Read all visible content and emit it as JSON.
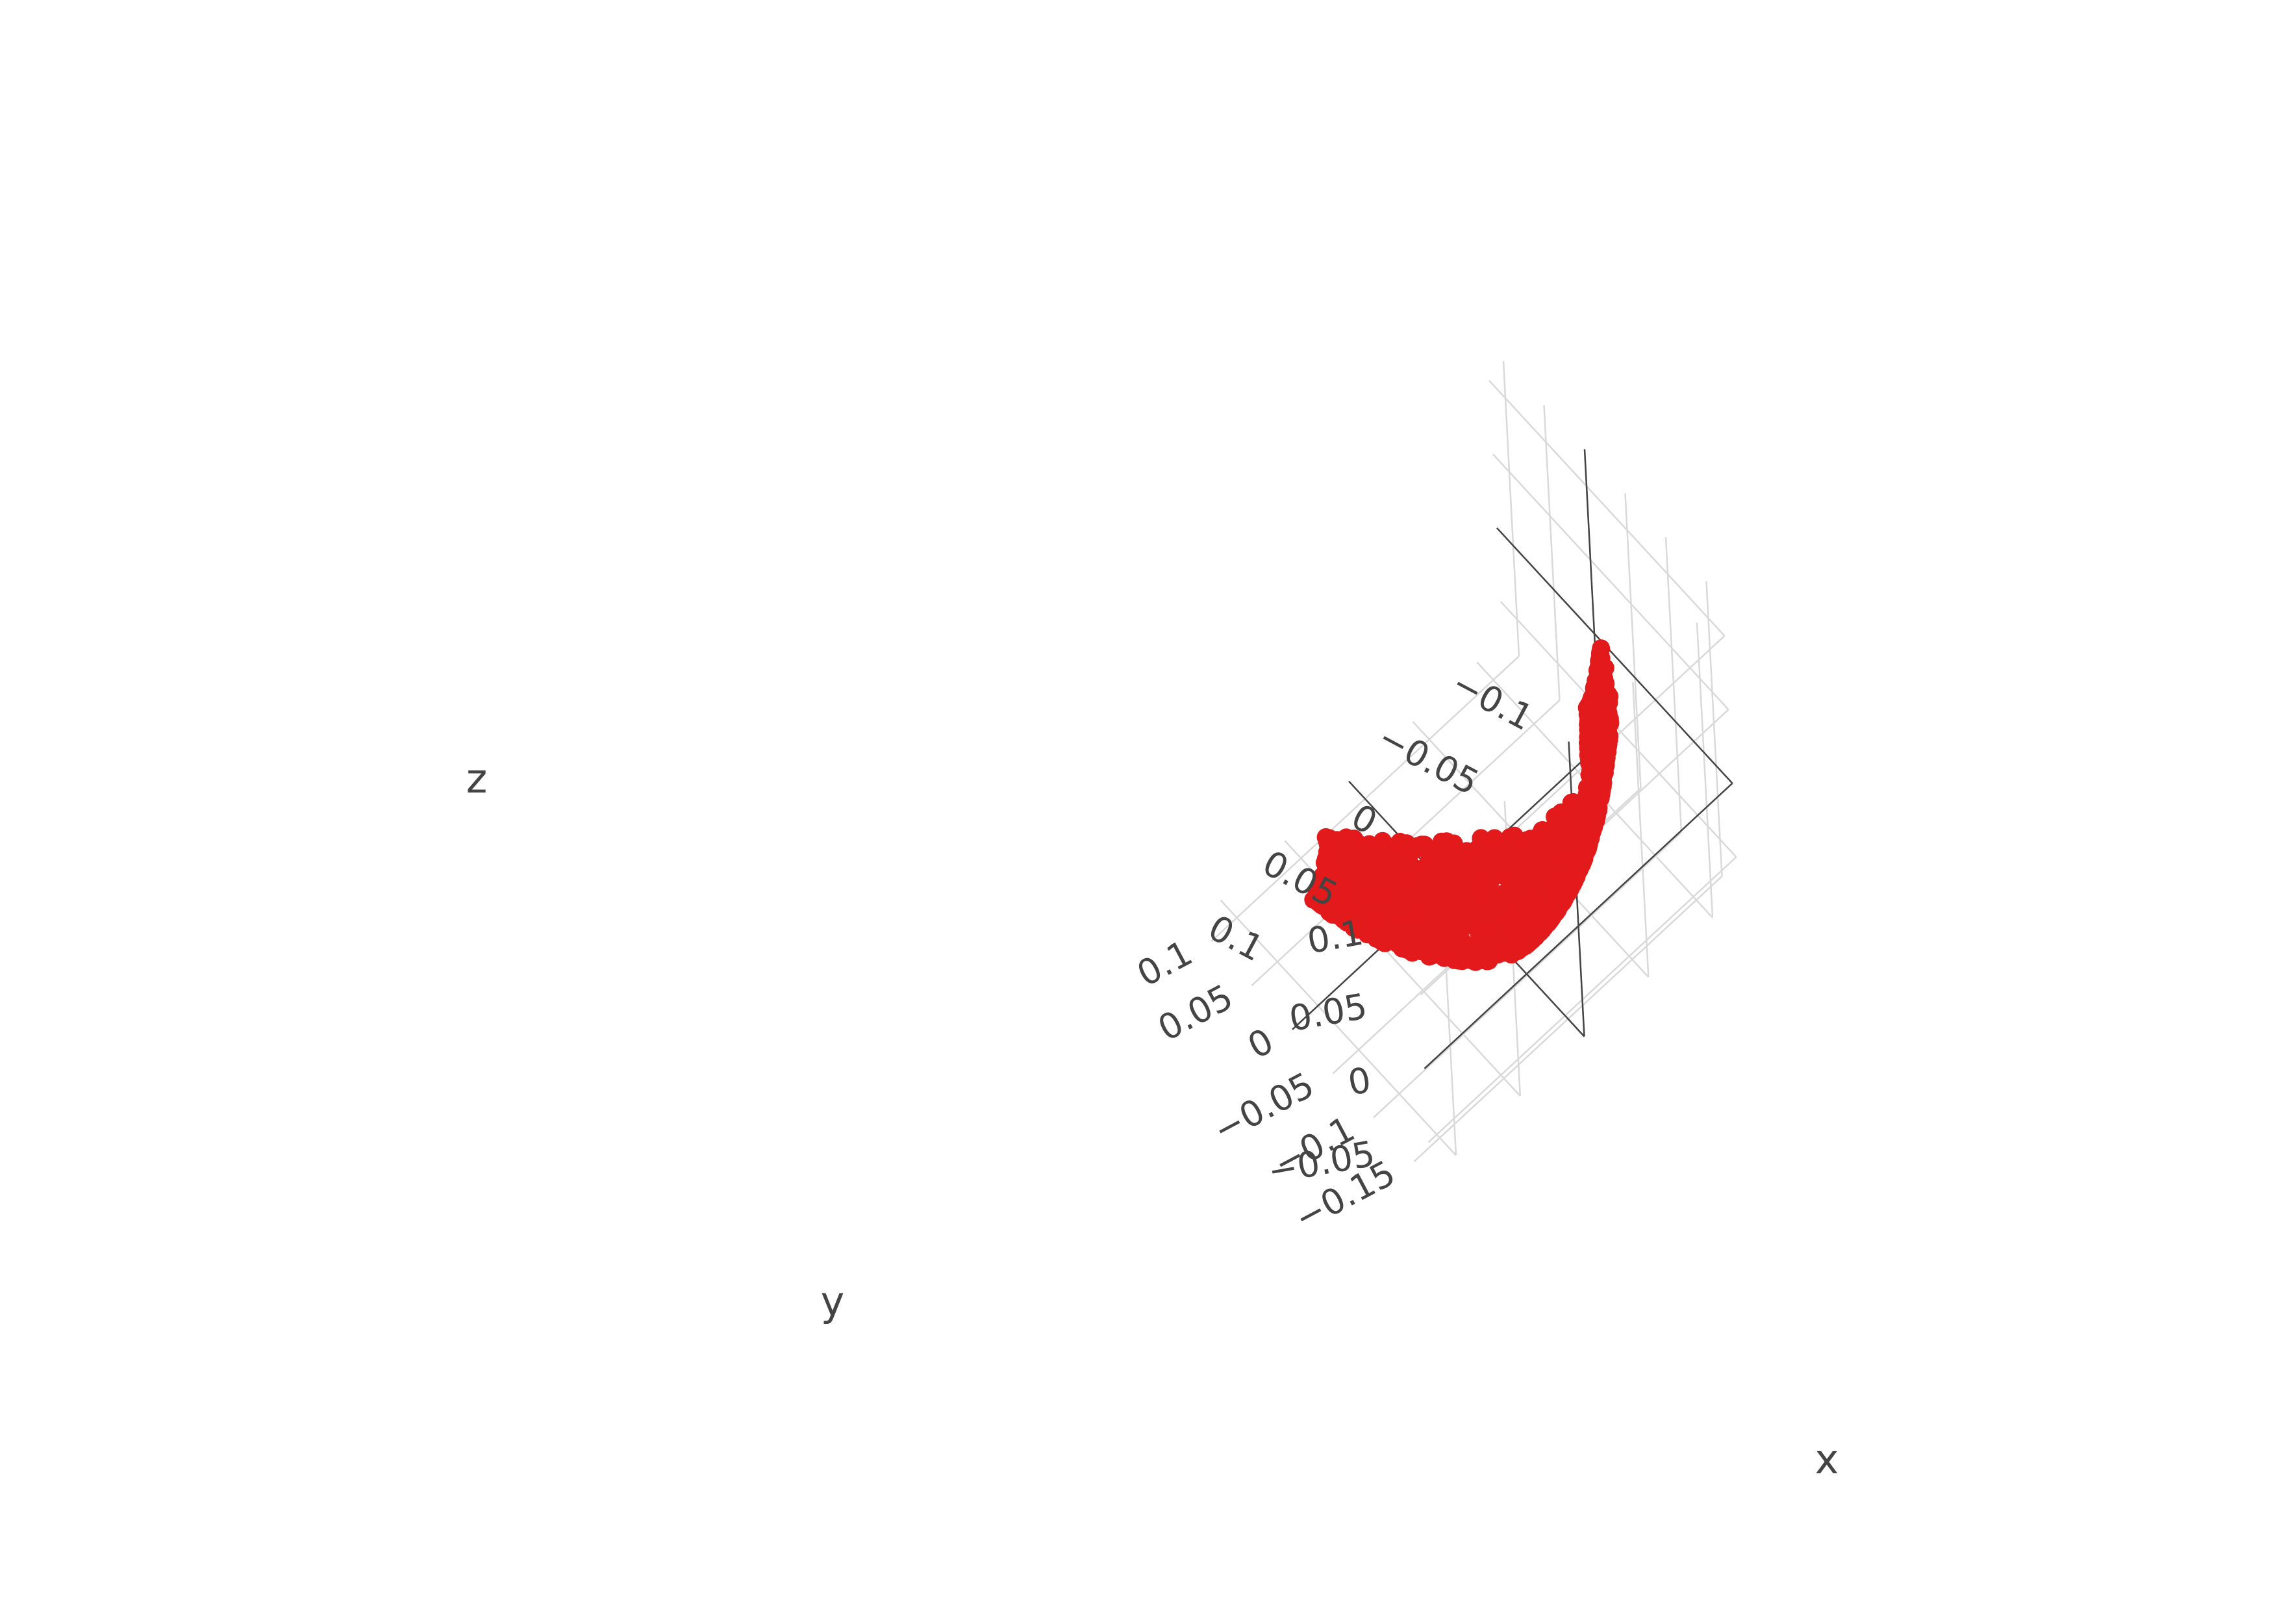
{
  "chart_data": {
    "type": "scatter3d",
    "title": "",
    "marker_color": "#e31a1c",
    "grid_color": "#d9d9d9",
    "zero_line_color": "#444444",
    "axes": {
      "x": {
        "title": "x",
        "range": [
          -0.12,
          0.12
        ],
        "ticks": [
          -0.1,
          -0.05,
          0,
          0.05,
          0.1
        ],
        "tick_labels": [
          "−0.1",
          "−0.05",
          "0",
          "0.05",
          "0.1"
        ]
      },
      "y": {
        "title": "y",
        "range": [
          -0.17,
          0.12
        ],
        "ticks": [
          -0.15,
          -0.1,
          -0.05,
          0,
          0.05,
          0.1
        ],
        "tick_labels": [
          "−0.15",
          "−0.1",
          "−0.05",
          "0",
          "0.05",
          "0.1"
        ]
      },
      "z": {
        "title": "z",
        "range": [
          -0.075,
          0.125
        ],
        "ticks": [
          -0.05,
          0,
          0.05,
          0.1
        ],
        "tick_labels": [
          "−0.05",
          "0",
          "0.05",
          "0.1"
        ]
      }
    },
    "shape": {
      "kind": "curved-shell-surface",
      "path_center": [
        [
          -0.05,
          -0.12,
          0.1
        ],
        [
          -0.04,
          -0.13,
          0.03
        ],
        [
          -0.01,
          -0.09,
          -0.03
        ],
        [
          0.03,
          -0.01,
          -0.05
        ],
        [
          0.06,
          0.06,
          -0.05
        ]
      ],
      "width": 0.09,
      "point_count": 1500
    }
  }
}
